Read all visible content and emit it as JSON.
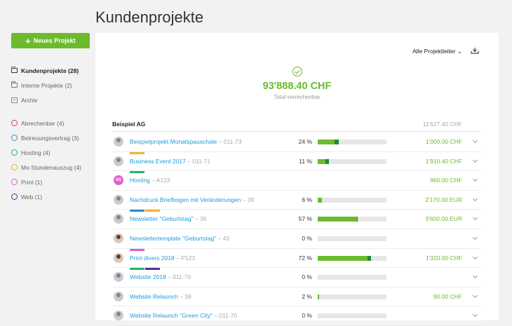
{
  "page": {
    "title": "Kundenprojekte"
  },
  "toolbar": {
    "new_project_label": "Neues Projekt",
    "project_lead_filter": "Alle Projektleiter",
    "project_lead_chevron": "⌄"
  },
  "sidebar": {
    "folders": [
      {
        "label": "Kundenprojekte (28)"
      },
      {
        "label": "Interne Projekte (2)"
      },
      {
        "label": "Archiv"
      }
    ],
    "categories": [
      {
        "label": "Abrechenbar (4)",
        "color": "#e0364e"
      },
      {
        "label": "Betreuungsvertrag (3)",
        "color": "#2a8ec9"
      },
      {
        "label": "Hosting (4)",
        "color": "#27b56b"
      },
      {
        "label": "Mo Stundenauszug (4)",
        "color": "#f0b429"
      },
      {
        "label": "Print (1)",
        "color": "#e25ad6"
      },
      {
        "label": "Web (1)",
        "color": "#5b2d9a"
      }
    ]
  },
  "summary": {
    "total": "93'888.40 CHF",
    "caption": "Total verrechenbar"
  },
  "group": {
    "name": "Beispiel AG",
    "total": "11'627.40 CHF"
  },
  "colors": {
    "accent": "#6cbb2c",
    "link": "#1e9ae0",
    "dark_green": "#1e8a3c"
  },
  "projects": [
    {
      "name": "Beispielprojekt Monatspauschale",
      "number": " – 011-73",
      "percent": "24 %",
      "fill": 0.24,
      "second": 0.07,
      "amount": "1'000.00 CHF",
      "avatar": "m",
      "tags": []
    },
    {
      "name": "Business Event 2017",
      "number": " – 011-71",
      "percent": "11 %",
      "fill": 0.11,
      "second": 0.05,
      "amount": "1'910.40 CHF",
      "avatar": "m",
      "tags": [
        "#f0b429"
      ]
    },
    {
      "name": "Hosting",
      "number": " – A123",
      "percent": "",
      "fill": 0,
      "second": 0,
      "amount": "960.00 CHF",
      "avatar": "SS",
      "tags": [
        "#27b56b"
      ]
    },
    {
      "name": "Nachdruck Briefbogen mit Veränderungen",
      "number": " – 39",
      "percent": "6 %",
      "fill": 0.06,
      "second": 0,
      "amount": "2'170.00 EUR",
      "avatar": "m",
      "tags": []
    },
    {
      "name": "Newsletter \"Geburtstag\"",
      "number": " – 36",
      "percent": "57 %",
      "fill": 0.57,
      "second": 0.01,
      "amount": "3'600.00 EUR",
      "avatar": "m",
      "tags": [
        "#2a8ec9",
        "#f0b429"
      ]
    },
    {
      "name": "Newslettertemplate \"Geburtstag\"",
      "number": " – 43",
      "percent": "0 %",
      "fill": 0,
      "second": 0,
      "amount": "",
      "avatar": "f",
      "tags": []
    },
    {
      "name": "Print divers 2018",
      "number": " – P123",
      "percent": "72 %",
      "fill": 0.72,
      "second": 0.06,
      "amount": "1'320.00 CHF",
      "avatar": "f",
      "tags": [
        "#e25ad6"
      ]
    },
    {
      "name": "Website 2018",
      "number": " – 011-70",
      "percent": "0 %",
      "fill": 0,
      "second": 0,
      "amount": "",
      "avatar": "m",
      "tags": [
        "#27b56b",
        "#5b2d9a"
      ]
    },
    {
      "name": "Website Relaunch",
      "number": " – 38",
      "percent": "2 %",
      "fill": 0.02,
      "second": 0,
      "amount": "90.00 CHF",
      "avatar": "m",
      "tags": []
    },
    {
      "name": "Website Relaunch \"Green City\"",
      "number": " – 011-70",
      "percent": "0 %",
      "fill": 0,
      "second": 0,
      "amount": "",
      "avatar": "m",
      "tags": []
    }
  ]
}
